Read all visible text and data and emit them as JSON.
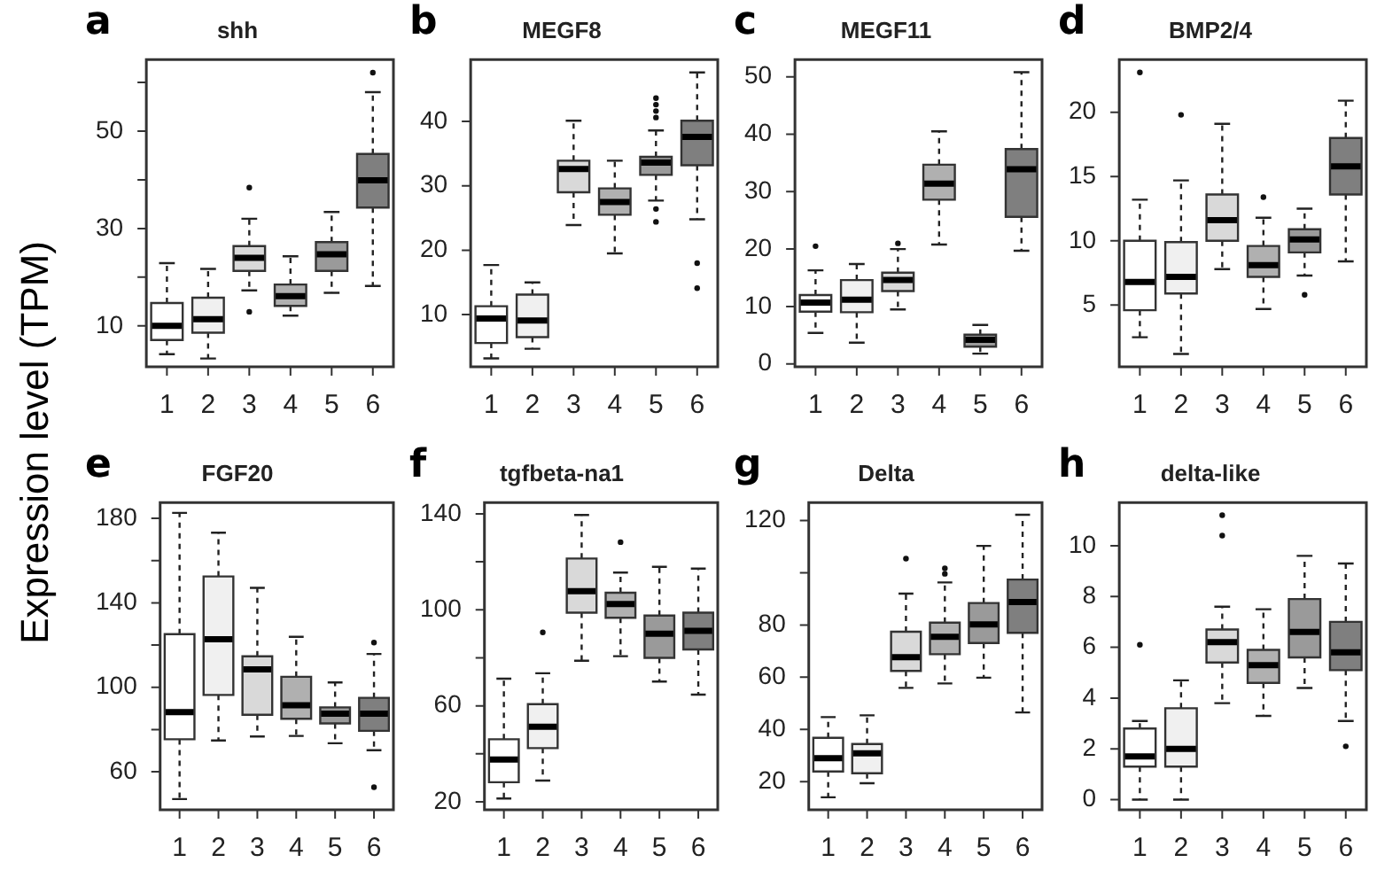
{
  "chart_data": [
    {
      "type": "box",
      "title": "shh",
      "ylabel": "Expression level (TPM)",
      "annotations": [
        "a"
      ],
      "categories": [
        "1",
        "2",
        "3",
        "4",
        "5",
        "6"
      ],
      "colors": [
        "#ffffff",
        "#f0f0f0",
        "#d9d9d9",
        "#b0b0b0",
        "#9a9a9a",
        "#7f7f7f"
      ],
      "ylim": [
        1.6,
        64.7
      ],
      "yticks": [
        10,
        {
          "value": 20,
          "label": null
        },
        30,
        {
          "value": 40,
          "label": null
        },
        50,
        {
          "value": 60,
          "label": null
        }
      ],
      "grid": false,
      "legend": false,
      "boxes": [
        {
          "low": 4.2,
          "q1": 7.1,
          "median": 10,
          "q3": 14.7,
          "high": 22.9
        },
        {
          "low": 3.3,
          "q1": 8.6,
          "median": 11.4,
          "q3": 15.8,
          "high": 21.7
        },
        {
          "low": 17.3,
          "q1": 21.3,
          "median": 24,
          "q3": 26.4,
          "high": 32,
          "outliers": [
            38.4,
            12.9
          ]
        },
        {
          "low": 12.1,
          "q1": 14.1,
          "median": 16.1,
          "q3": 18.5,
          "high": 24.3
        },
        {
          "low": 16.8,
          "q1": 21.3,
          "median": 24.7,
          "q3": 27.2,
          "high": 33.4
        },
        {
          "low": 18.2,
          "q1": 34.3,
          "median": 39.9,
          "q3": 45.3,
          "high": 58,
          "outliers": [
            62
          ]
        }
      ]
    },
    {
      "type": "box",
      "title": "MEGF8",
      "annotations": [
        "b"
      ],
      "categories": [
        "1",
        "2",
        "3",
        "4",
        "5",
        "6"
      ],
      "colors": [
        "#ffffff",
        "#f0f0f0",
        "#d9d9d9",
        "#b0b0b0",
        "#9a9a9a",
        "#7f7f7f"
      ],
      "ylim": [
        1.9,
        49.6
      ],
      "yticks": [
        10,
        20,
        30,
        40
      ],
      "grid": false,
      "legend": false,
      "boxes": [
        {
          "low": 3.2,
          "q1": 5.6,
          "median": 9.4,
          "q3": 11.3,
          "high": 17.7
        },
        {
          "low": 4.7,
          "q1": 6.5,
          "median": 9.1,
          "q3": 13.1,
          "high": 15
        },
        {
          "low": 23.9,
          "q1": 29,
          "median": 32.6,
          "q3": 33.9,
          "high": 40.1
        },
        {
          "low": 19.5,
          "q1": 25.5,
          "median": 27.5,
          "q3": 29.6,
          "high": 33.9
        },
        {
          "low": 27.7,
          "q1": 31.7,
          "median": 33.6,
          "q3": 34.5,
          "high": 38.6,
          "outliers": [
            43.6,
            42.6,
            41.6,
            40.6,
            26.4,
            24.4
          ]
        },
        {
          "low": 24.8,
          "q1": 33.2,
          "median": 37.6,
          "q3": 40.1,
          "high": 47.6,
          "outliers": [
            18,
            14.1
          ]
        }
      ]
    },
    {
      "type": "box",
      "title": "MEGF11",
      "annotations": [
        "c"
      ],
      "categories": [
        "1",
        "2",
        "3",
        "4",
        "5",
        "6"
      ],
      "colors": [
        "#ffffff",
        "#f0f0f0",
        "#d9d9d9",
        "#b0b0b0",
        "#9a9a9a",
        "#7f7f7f"
      ],
      "ylim": [
        -0.5,
        53
      ],
      "yticks": [
        0,
        10,
        20,
        30,
        40,
        50
      ],
      "grid": false,
      "legend": false,
      "boxes": [
        {
          "low": 5.4,
          "q1": 9.1,
          "median": 10.7,
          "q3": 12,
          "high": 16.3,
          "outliers": [
            20.5
          ]
        },
        {
          "low": 3.7,
          "q1": 9,
          "median": 11.2,
          "q3": 14.6,
          "high": 17.4
        },
        {
          "low": 9.5,
          "q1": 12.7,
          "median": 14.6,
          "q3": 15.9,
          "high": 20,
          "outliers": [
            21
          ]
        },
        {
          "low": 20.8,
          "q1": 28.6,
          "median": 31.4,
          "q3": 34.7,
          "high": 40.5
        },
        {
          "low": 1.8,
          "q1": 3,
          "median": 4.2,
          "q3": 5.1,
          "high": 6.8
        },
        {
          "low": 19.7,
          "q1": 25.6,
          "median": 33.9,
          "q3": 37.4,
          "high": 50.8
        }
      ]
    },
    {
      "type": "box",
      "title": "BMP2/4",
      "annotations": [
        "d"
      ],
      "categories": [
        "1",
        "2",
        "3",
        "4",
        "5",
        "6"
      ],
      "colors": [
        "#ffffff",
        "#f0f0f0",
        "#d9d9d9",
        "#b0b0b0",
        "#9a9a9a",
        "#7f7f7f"
      ],
      "ylim": [
        0.2,
        24.1
      ],
      "yticks": [
        5,
        10,
        15,
        20
      ],
      "grid": false,
      "legend": false,
      "boxes": [
        {
          "low": 2.5,
          "q1": 4.6,
          "median": 6.8,
          "q3": 10,
          "high": 13.2,
          "outliers": [
            23.1
          ]
        },
        {
          "low": 1.2,
          "q1": 5.9,
          "median": 7.2,
          "q3": 9.9,
          "high": 14.7,
          "outliers": [
            19.8
          ]
        },
        {
          "low": 7.8,
          "q1": 10,
          "median": 11.6,
          "q3": 13.6,
          "high": 19.1
        },
        {
          "low": 4.7,
          "q1": 7.2,
          "median": 8.1,
          "q3": 9.6,
          "high": 11.8,
          "outliers": [
            13.4
          ]
        },
        {
          "low": 7.3,
          "q1": 9.1,
          "median": 10.1,
          "q3": 10.9,
          "high": 12.5,
          "outliers": [
            5.8
          ]
        },
        {
          "low": 8.4,
          "q1": 13.6,
          "median": 15.8,
          "q3": 18,
          "high": 20.9
        }
      ]
    },
    {
      "type": "box",
      "title": "FGF20",
      "annotations": [
        "e"
      ],
      "categories": [
        "1",
        "2",
        "3",
        "4",
        "5",
        "6"
      ],
      "colors": [
        "#ffffff",
        "#f0f0f0",
        "#d9d9d9",
        "#b0b0b0",
        "#9a9a9a",
        "#7f7f7f"
      ],
      "ylim": [
        42,
        187.5
      ],
      "yticks": [
        60,
        {
          "value": 80,
          "label": null
        },
        100,
        {
          "value": 120,
          "label": null
        },
        140,
        {
          "value": 160,
          "label": null
        },
        180
      ],
      "grid": false,
      "legend": false,
      "boxes": [
        {
          "low": 47.1,
          "q1": 75.4,
          "median": 88.3,
          "q3": 125.2,
          "high": 182.6
        },
        {
          "low": 74.8,
          "q1": 96.4,
          "median": 122.8,
          "q3": 152.5,
          "high": 173.2
        },
        {
          "low": 76.7,
          "q1": 87,
          "median": 108.5,
          "q3": 114.7,
          "high": 147.1
        },
        {
          "low": 77,
          "q1": 85.1,
          "median": 91.5,
          "q3": 105,
          "high": 123.9
        },
        {
          "low": 73.5,
          "q1": 82.9,
          "median": 87.5,
          "q3": 90.5,
          "high": 102.3
        },
        {
          "low": 70.2,
          "q1": 79.4,
          "median": 87.5,
          "q3": 95,
          "high": 115.8,
          "outliers": [
            121.2,
            52.7
          ]
        }
      ]
    },
    {
      "type": "box",
      "title": "tgfbeta-na1",
      "annotations": [
        "f"
      ],
      "categories": [
        "1",
        "2",
        "3",
        "4",
        "5",
        "6"
      ],
      "colors": [
        "#ffffff",
        "#f0f0f0",
        "#d9d9d9",
        "#b0b0b0",
        "#9a9a9a",
        "#7f7f7f"
      ],
      "ylim": [
        16.7,
        144.7
      ],
      "yticks": [
        20,
        {
          "value": 40,
          "label": null
        },
        60,
        {
          "value": 80,
          "label": null
        },
        100,
        {
          "value": 120,
          "label": null
        },
        140
      ],
      "grid": false,
      "legend": false,
      "boxes": [
        {
          "low": 21.4,
          "q1": 28.2,
          "median": 37.6,
          "q3": 46.1,
          "high": 71.3
        },
        {
          "low": 28.9,
          "q1": 42.4,
          "median": 51.3,
          "q3": 60.7,
          "high": 73.6,
          "outliers": [
            90.6
          ]
        },
        {
          "low": 78.8,
          "q1": 98.8,
          "median": 107.8,
          "q3": 121.4,
          "high": 139.5
        },
        {
          "low": 80.7,
          "q1": 96.7,
          "median": 102.4,
          "q3": 107.1,
          "high": 115.5,
          "outliers": [
            128.2
          ]
        },
        {
          "low": 70.1,
          "q1": 80,
          "median": 90.1,
          "q3": 97.6,
          "high": 117.9
        },
        {
          "low": 64.7,
          "q1": 83.5,
          "median": 91.3,
          "q3": 98.8,
          "high": 117.2
        }
      ]
    },
    {
      "type": "box",
      "title": "Delta",
      "annotations": [
        "g"
      ],
      "categories": [
        "1",
        "2",
        "3",
        "4",
        "5",
        "6"
      ],
      "colors": [
        "#ffffff",
        "#f0f0f0",
        "#d9d9d9",
        "#b0b0b0",
        "#9a9a9a",
        "#7f7f7f"
      ],
      "ylim": [
        9.2,
        126.9
      ],
      "yticks": [
        20,
        40,
        60,
        80,
        {
          "value": 100,
          "label": null
        },
        120
      ],
      "grid": false,
      "legend": false,
      "boxes": [
        {
          "low": 14,
          "q1": 23.9,
          "median": 29,
          "q3": 36.8,
          "high": 44.7
        },
        {
          "low": 19.4,
          "q1": 23.2,
          "median": 30.8,
          "q3": 34.4,
          "high": 45.4
        },
        {
          "low": 55.9,
          "q1": 62.4,
          "median": 67.7,
          "q3": 77.4,
          "high": 92,
          "outliers": [
            105.4
          ]
        },
        {
          "low": 57.6,
          "q1": 68.8,
          "median": 75.5,
          "q3": 80.9,
          "high": 96.3,
          "outliers": [
            101.7,
            99.6
          ]
        },
        {
          "low": 59.8,
          "q1": 73.1,
          "median": 80.2,
          "q3": 88.4,
          "high": 110.3
        },
        {
          "low": 46.5,
          "q1": 77,
          "median": 88.8,
          "q3": 97.4,
          "high": 122.2
        }
      ]
    },
    {
      "type": "box",
      "title": "delta-like",
      "annotations": [
        "h"
      ],
      "categories": [
        "1",
        "2",
        "3",
        "4",
        "5",
        "6"
      ],
      "colors": [
        "#ffffff",
        "#f0f0f0",
        "#d9d9d9",
        "#b0b0b0",
        "#9a9a9a",
        "#7f7f7f"
      ],
      "ylim": [
        -0.4,
        11.7
      ],
      "yticks": [
        0,
        2,
        4,
        6,
        8,
        10
      ],
      "grid": false,
      "legend": false,
      "boxes": [
        {
          "low": 0,
          "q1": 1.3,
          "median": 1.7,
          "q3": 2.8,
          "high": 3.1,
          "outliers": [
            6.1
          ]
        },
        {
          "low": 0,
          "q1": 1.3,
          "median": 2,
          "q3": 3.6,
          "high": 4.7
        },
        {
          "low": 3.8,
          "q1": 5.4,
          "median": 6.2,
          "q3": 6.7,
          "high": 7.6,
          "outliers": [
            11.2,
            10.4
          ]
        },
        {
          "low": 3.3,
          "q1": 4.6,
          "median": 5.3,
          "q3": 5.9,
          "high": 7.5
        },
        {
          "low": 4.4,
          "q1": 5.6,
          "median": 6.6,
          "q3": 7.9,
          "high": 9.6
        },
        {
          "low": 3.1,
          "q1": 5.1,
          "median": 5.8,
          "q3": 7,
          "high": 9.3,
          "outliers": [
            2.1
          ]
        }
      ]
    }
  ]
}
